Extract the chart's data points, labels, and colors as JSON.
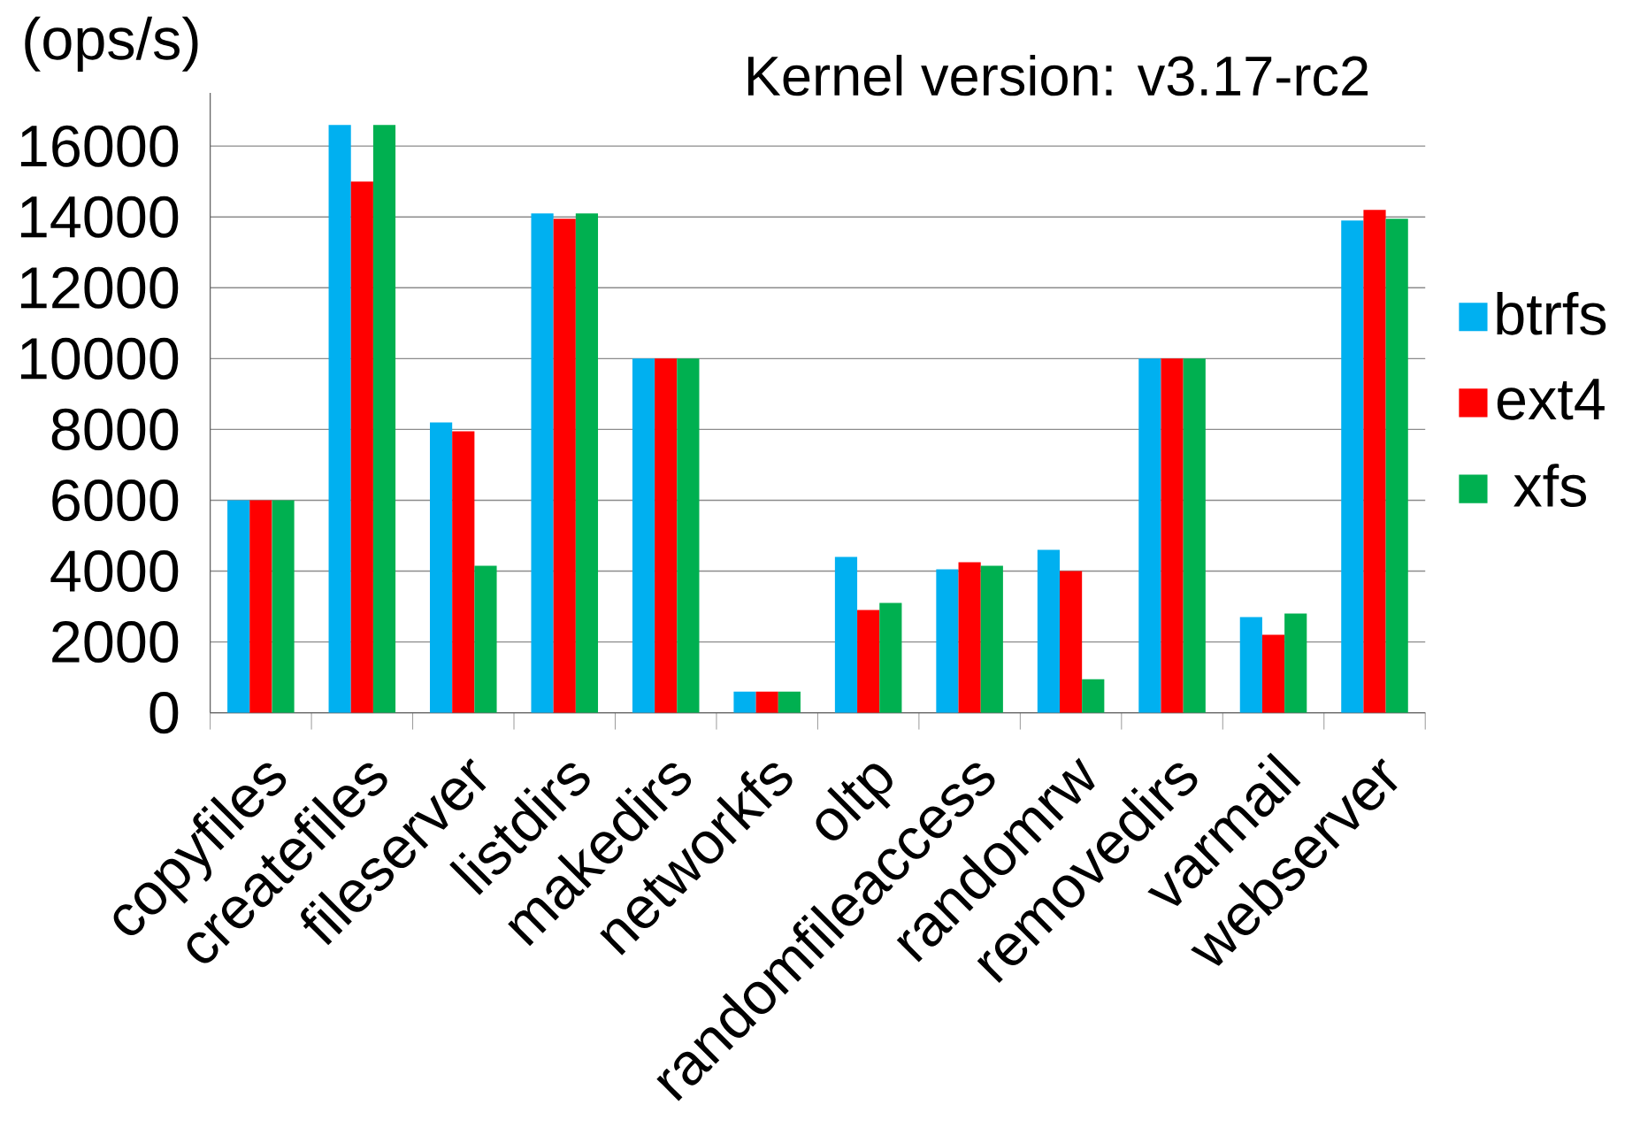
{
  "chart_data": {
    "type": "bar",
    "title": "Kernel version: v3.17-rc2",
    "ylabel": "(ops/s)",
    "categories": [
      "copyfiles",
      "createfiles",
      "fileserver",
      "listdirs",
      "makedirs",
      "networkfs",
      "oltp",
      "randomfileaccess",
      "randomrw",
      "removedirs",
      "varmail",
      "webserver"
    ],
    "series": [
      {
        "name": "btrfs",
        "color": "#00b0f0",
        "values": [
          6000,
          16600,
          8200,
          14100,
          10000,
          600,
          4400,
          4050,
          4600,
          10000,
          2700,
          13900
        ]
      },
      {
        "name": "ext4",
        "color": "#ff0000",
        "values": [
          6000,
          15000,
          7950,
          13950,
          10000,
          600,
          2900,
          4250,
          4000,
          10000,
          2200,
          14200
        ]
      },
      {
        "name": "xfs",
        "color": "#00b050",
        "values": [
          6000,
          16600,
          4150,
          14100,
          10000,
          600,
          3100,
          4150,
          950,
          10000,
          2800,
          13950
        ]
      }
    ],
    "ylim": [
      0,
      17500
    ],
    "yticks": [
      0,
      2000,
      4000,
      6000,
      8000,
      10000,
      12000,
      14000,
      16000
    ],
    "grid": "y",
    "legend": "right"
  }
}
